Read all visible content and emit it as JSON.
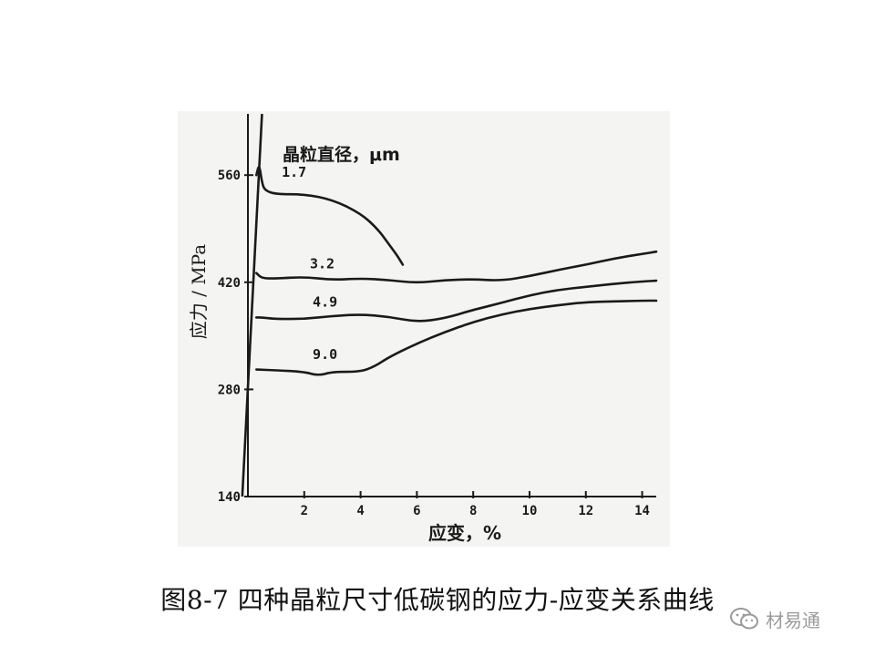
{
  "chart_data": {
    "type": "line",
    "title": "",
    "ylabel": "应力 / MPa",
    "xlabel": "应变，%",
    "legend_title": "晶粒直径，μm",
    "xlim": [
      0,
      14.5
    ],
    "ylim": [
      140,
      640
    ],
    "x_ticks": [
      2,
      4,
      6,
      8,
      10,
      12,
      14
    ],
    "x_tick_labels": [
      "2",
      "4",
      "6",
      "8",
      "10",
      "12",
      "14"
    ],
    "y_ticks": [
      140,
      280,
      420,
      560
    ],
    "y_tick_labels": [
      "140",
      "280",
      "420",
      "560"
    ],
    "grid": false,
    "series": [
      {
        "name": "1.7",
        "x": [
          0.3,
          0.4,
          0.5,
          0.6,
          1.0,
          2.0,
          3.0,
          4.0,
          4.6,
          5.0,
          5.3,
          5.5
        ],
        "y": [
          560,
          575,
          550,
          540,
          535,
          535,
          528,
          510,
          490,
          470,
          455,
          443
        ]
      },
      {
        "name": "3.2",
        "x": [
          0.3,
          0.5,
          1,
          2,
          3,
          4,
          5,
          6,
          7,
          8,
          9,
          10,
          11,
          12,
          13,
          14,
          14.5
        ],
        "y": [
          432,
          425,
          425,
          427,
          423,
          425,
          423,
          419,
          423,
          424,
          422,
          428,
          436,
          443,
          451,
          457,
          460
        ]
      },
      {
        "name": "4.9",
        "x": [
          0.3,
          0.5,
          1,
          2,
          3,
          4,
          5,
          6,
          7,
          8,
          9,
          10,
          11,
          12,
          13,
          14,
          14.5
        ],
        "y": [
          374,
          374,
          372,
          372,
          376,
          378,
          375,
          368,
          373,
          384,
          393,
          403,
          410,
          414,
          418,
          421,
          422
        ]
      },
      {
        "name": "9.0",
        "x": [
          0.3,
          1,
          2,
          2.5,
          3,
          4,
          4.5,
          5,
          6,
          7,
          8,
          9,
          10,
          11,
          12,
          13,
          14,
          14.5
        ],
        "y": [
          306,
          305,
          303,
          298,
          303,
          303,
          310,
          322,
          340,
          355,
          368,
          378,
          385,
          390,
          394,
          395,
          396,
          396
        ]
      }
    ],
    "elastic_line": {
      "x": [
        -0.2,
        0.5
      ],
      "y": [
        140,
        640
      ]
    }
  },
  "caption": "图8-7  四种晶粒尺寸低碳钢的应力-应变关系曲线",
  "watermark": {
    "text": "材易通",
    "icon": "wechat-icon"
  },
  "colors": {
    "ink": "#1a1a1a",
    "scan_bg": "#f4f4f2",
    "watermark": "#9a9a9a"
  }
}
